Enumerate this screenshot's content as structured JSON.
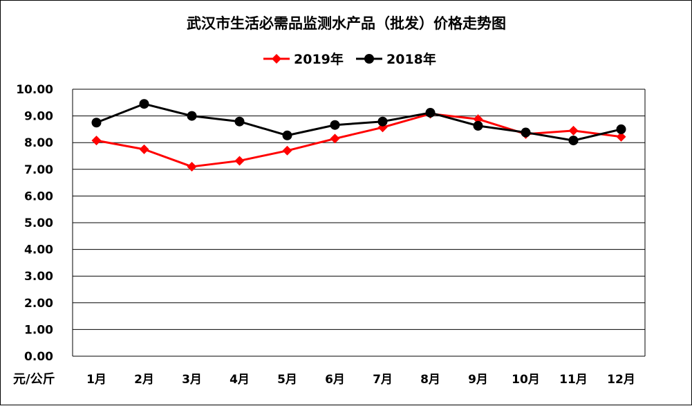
{
  "chart_data": {
    "type": "line",
    "title": "武汉市生活必需品监测水产品（批发）价格走势图",
    "ylabel": "元/公斤",
    "xlabel": "",
    "categories": [
      "1月",
      "2月",
      "3月",
      "4月",
      "5月",
      "6月",
      "7月",
      "8月",
      "9月",
      "10月",
      "11月",
      "12月"
    ],
    "ylim": [
      0,
      10
    ],
    "yticks": [
      "0.00",
      "1.00",
      "2.00",
      "3.00",
      "4.00",
      "5.00",
      "6.00",
      "7.00",
      "8.00",
      "9.00",
      "10.00"
    ],
    "grid": true,
    "legend_position": "top-center",
    "series": [
      {
        "name": "2019年",
        "color": "#ff0000",
        "marker": "diamond",
        "values": [
          8.08,
          7.75,
          7.1,
          7.32,
          7.7,
          8.15,
          8.57,
          9.08,
          8.88,
          8.32,
          8.45,
          8.22
        ]
      },
      {
        "name": "2018年",
        "color": "#000000",
        "marker": "circle",
        "values": [
          8.75,
          9.45,
          9.0,
          8.79,
          8.27,
          8.66,
          8.79,
          9.12,
          8.63,
          8.38,
          8.08,
          8.5
        ]
      }
    ]
  }
}
